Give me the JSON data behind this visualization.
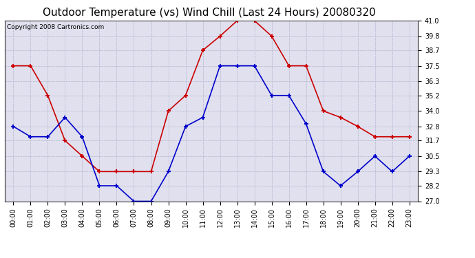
{
  "title": "Outdoor Temperature (vs) Wind Chill (Last 24 Hours) 20080320",
  "copyright_text": "Copyright 2008 Cartronics.com",
  "hours": [
    "00:00",
    "01:00",
    "02:00",
    "03:00",
    "04:00",
    "05:00",
    "06:00",
    "07:00",
    "08:00",
    "09:00",
    "10:00",
    "11:00",
    "12:00",
    "13:00",
    "14:00",
    "15:00",
    "16:00",
    "17:00",
    "18:00",
    "19:00",
    "20:00",
    "21:00",
    "22:00",
    "23:00"
  ],
  "temp_red": [
    37.5,
    37.5,
    35.2,
    31.7,
    30.5,
    29.3,
    29.3,
    29.3,
    29.3,
    34.0,
    35.2,
    38.7,
    39.8,
    41.0,
    41.0,
    39.8,
    37.5,
    37.5,
    34.0,
    33.5,
    32.8,
    32.0,
    32.0,
    32.0
  ],
  "wind_blue": [
    32.8,
    32.0,
    32.0,
    33.5,
    32.0,
    28.2,
    28.2,
    27.0,
    27.0,
    29.3,
    32.8,
    33.5,
    37.5,
    37.5,
    37.5,
    35.2,
    35.2,
    33.0,
    29.3,
    28.2,
    29.3,
    30.5,
    29.3,
    30.5
  ],
  "ylim": [
    27.0,
    41.0
  ],
  "yticks": [
    27.0,
    28.2,
    29.3,
    30.5,
    31.7,
    32.8,
    34.0,
    35.2,
    36.3,
    37.5,
    38.7,
    39.8,
    41.0
  ],
  "red_color": "#cc0000",
  "blue_color": "#0000cc",
  "bg_color": "#ffffff",
  "plot_bg_color": "#e0e0ee",
  "grid_color": "#aaaacc",
  "title_fontsize": 11,
  "tick_fontsize": 7,
  "copyright_fontsize": 6.5
}
